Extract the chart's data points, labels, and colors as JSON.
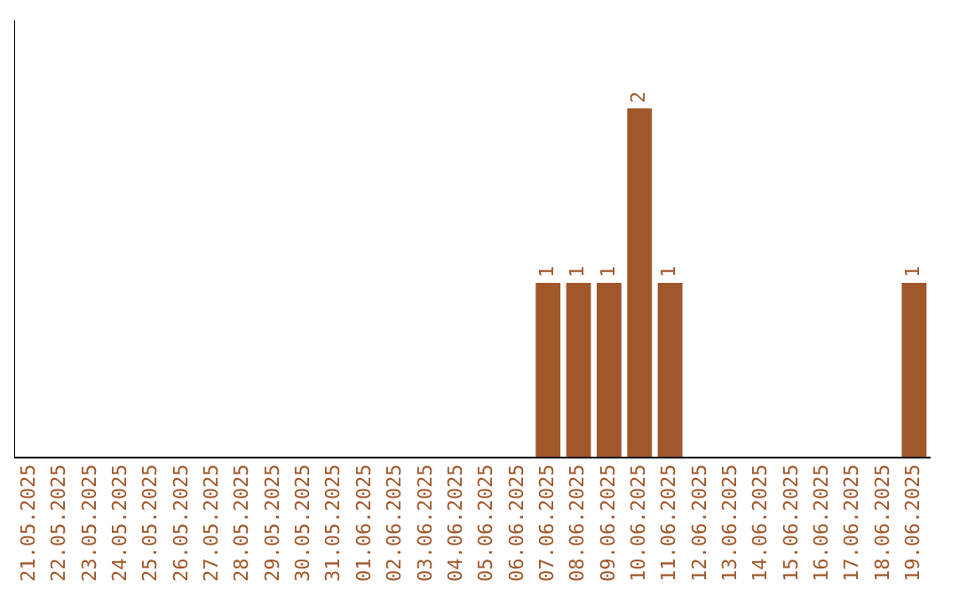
{
  "chart_data": {
    "type": "bar",
    "categories": [
      "21.05.2025",
      "22.05.2025",
      "23.05.2025",
      "24.05.2025",
      "25.05.2025",
      "26.05.2025",
      "27.05.2025",
      "28.05.2025",
      "29.05.2025",
      "30.05.2025",
      "31.05.2025",
      "01.06.2025",
      "02.06.2025",
      "03.06.2025",
      "04.06.2025",
      "05.06.2025",
      "06.06.2025",
      "07.06.2025",
      "08.06.2025",
      "09.06.2025",
      "10.06.2025",
      "11.06.2025",
      "12.06.2025",
      "13.06.2025",
      "14.06.2025",
      "15.06.2025",
      "16.06.2025",
      "17.06.2025",
      "18.06.2025",
      "19.06.2025"
    ],
    "values": [
      null,
      null,
      null,
      null,
      null,
      null,
      null,
      null,
      null,
      null,
      null,
      null,
      null,
      null,
      null,
      null,
      null,
      1,
      1,
      1,
      2,
      1,
      null,
      null,
      null,
      null,
      null,
      null,
      null,
      1
    ],
    "data_labels": true,
    "color": "#a0572a",
    "grid": false,
    "legend": false,
    "tick_labels": "x"
  }
}
